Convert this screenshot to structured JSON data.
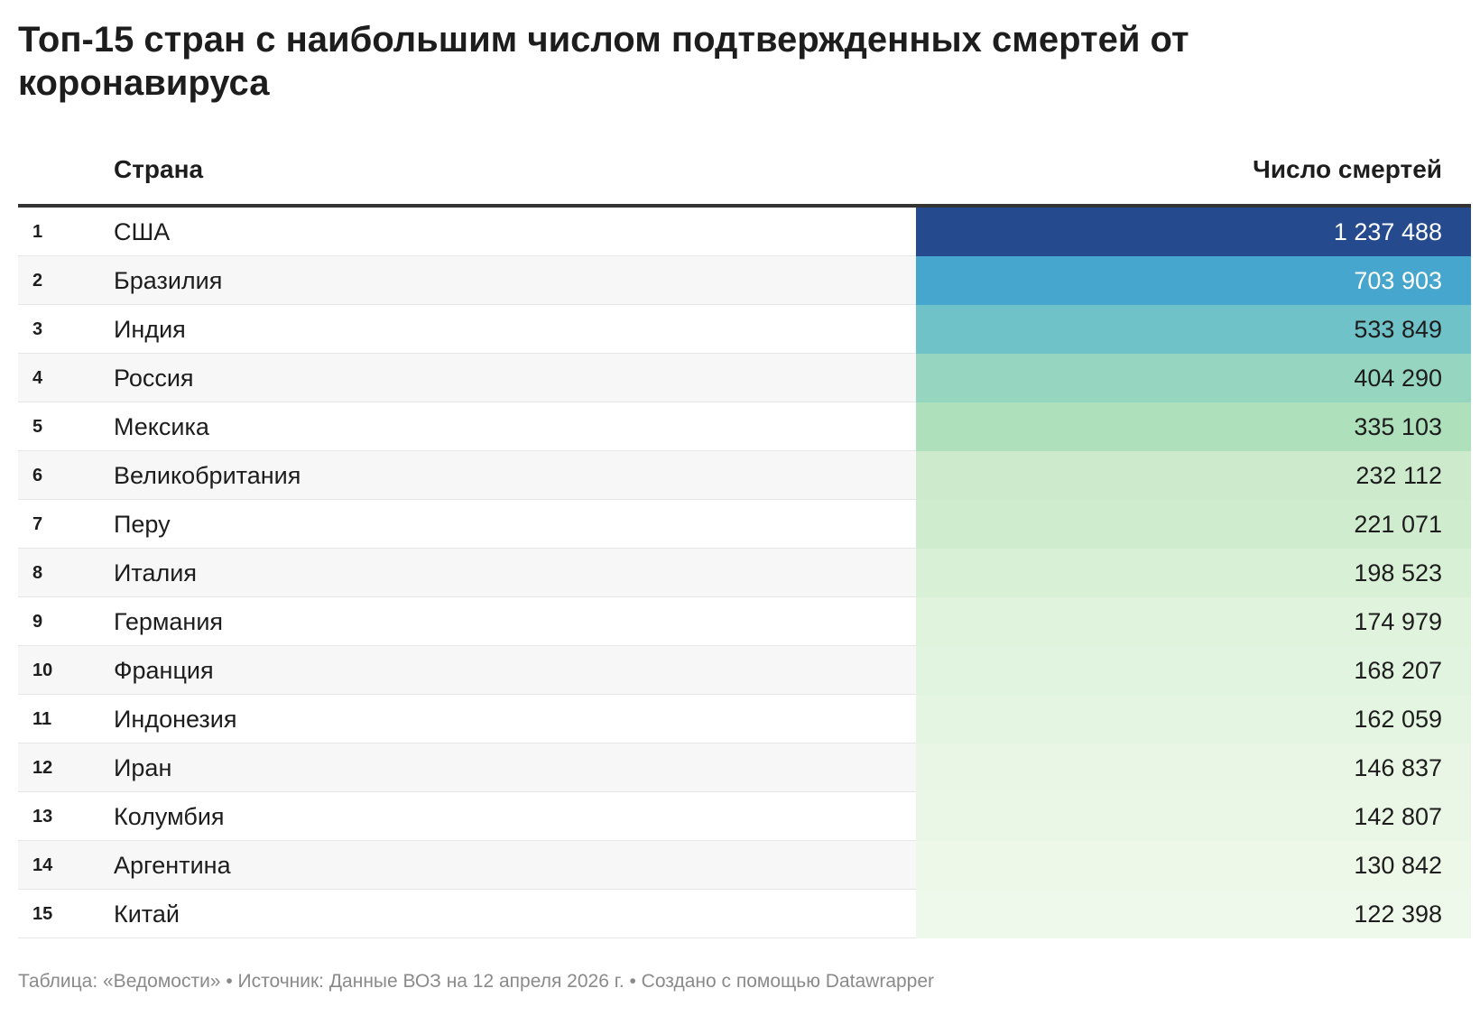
{
  "title": "Топ-15 стран с наибольшим числом подтвержденных смертей от коронавируса",
  "footer": "Таблица: «Ведомости» • Источник: Данные ВОЗ на 12 апреля 2026 г. • Создано с помощью Datawrapper",
  "chart_data": {
    "type": "table",
    "columns": [
      "",
      "Страна",
      "Число смертей"
    ],
    "rows": [
      {
        "rank": "1",
        "country": "США",
        "deaths": "1 237 488",
        "value": 1237488,
        "color": "#254b8e"
      },
      {
        "rank": "2",
        "country": "Бразилия",
        "deaths": "703 903",
        "value": 703903,
        "color": "#46a6cd"
      },
      {
        "rank": "3",
        "country": "Индия",
        "deaths": "533 849",
        "value": 533849,
        "color": "#6fc2c8"
      },
      {
        "rank": "4",
        "country": "Россия",
        "deaths": "404 290",
        "value": 404290,
        "color": "#96d6c0"
      },
      {
        "rank": "5",
        "country": "Мексика",
        "deaths": "335 103",
        "value": 335103,
        "color": "#ade0bb"
      },
      {
        "rank": "6",
        "country": "Великобритания",
        "deaths": "232 112",
        "value": 232112,
        "color": "#cdebcc"
      },
      {
        "rank": "7",
        "country": "Перу",
        "deaths": "221 071",
        "value": 221071,
        "color": "#d0eccf"
      },
      {
        "rank": "8",
        "country": "Италия",
        "deaths": "198 523",
        "value": 198523,
        "color": "#d8f0d6"
      },
      {
        "rank": "9",
        "country": "Германия",
        "deaths": "174 979",
        "value": 174979,
        "color": "#e0f3dd"
      },
      {
        "rank": "10",
        "country": "Франция",
        "deaths": "168 207",
        "value": 168207,
        "color": "#e1f4df"
      },
      {
        "rank": "11",
        "country": "Индонезия",
        "deaths": "162 059",
        "value": 162059,
        "color": "#e4f5e1"
      },
      {
        "rank": "12",
        "country": "Иран",
        "deaths": "146 837",
        "value": 146837,
        "color": "#e9f6e5"
      },
      {
        "rank": "13",
        "country": "Колумбия",
        "deaths": "142 807",
        "value": 142807,
        "color": "#eaf7e6"
      },
      {
        "rank": "14",
        "country": "Аргентина",
        "deaths": "130 842",
        "value": 130842,
        "color": "#edf8e9"
      },
      {
        "rank": "15",
        "country": "Китай",
        "deaths": "122 398",
        "value": 122398,
        "color": "#eff9eb"
      }
    ]
  }
}
